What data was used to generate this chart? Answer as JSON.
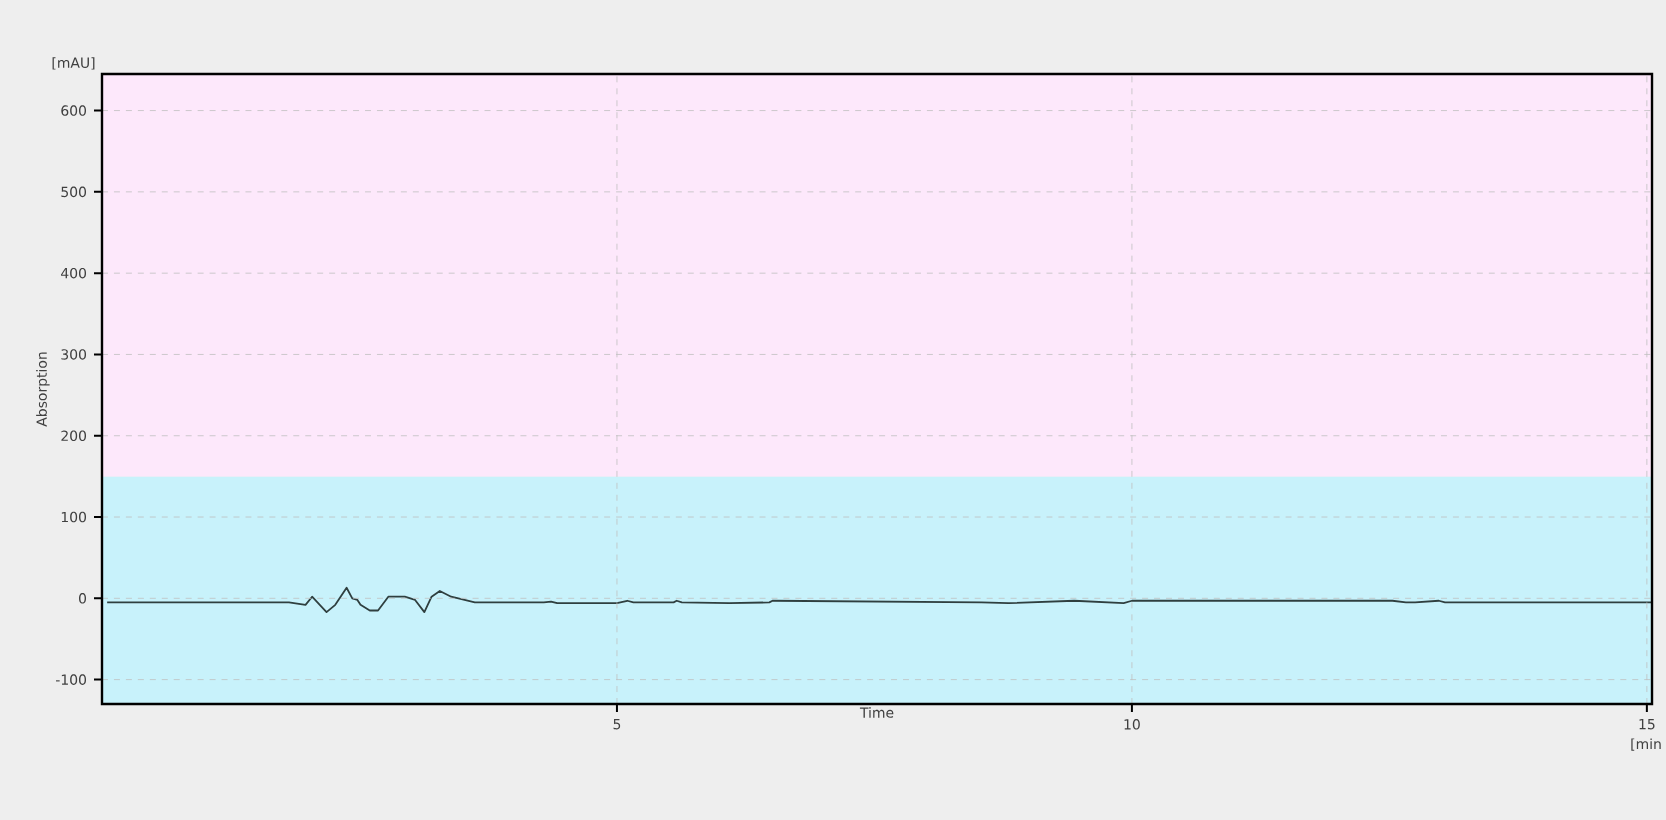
{
  "chart_data": {
    "type": "line",
    "xlabel": "Time",
    "ylabel": "Absorption",
    "annotations": [
      "[mAU]",
      "[min"
    ],
    "x": [
      0.05,
      1.815,
      1.976,
      2.04,
      2.18,
      2.265,
      2.375,
      2.43,
      2.48,
      2.51,
      2.6,
      2.68,
      2.78,
      2.94,
      3.04,
      3.13,
      3.2,
      3.28,
      3.39,
      3.52,
      3.62,
      4.29,
      4.36,
      4.42,
      5.0,
      5.1,
      5.16,
      5.55,
      5.58,
      5.63,
      6.09,
      6.48,
      6.51,
      8.54,
      8.8,
      9.44,
      9.92,
      10.0,
      12.53,
      12.66,
      12.75,
      12.98,
      13.04,
      15.04
    ],
    "series": [
      {
        "color": "#2f3f3f",
        "values": [
          -5,
          -5,
          -8,
          2,
          -17,
          -8,
          13,
          0,
          -2,
          -8,
          -15,
          -15,
          2,
          2,
          -2,
          -17,
          2,
          9,
          2,
          -2,
          -5,
          -5,
          -4,
          -6,
          -6,
          -3,
          -5,
          -5,
          -3,
          -5,
          -6,
          -5,
          -3,
          -5,
          -6,
          -3,
          -6,
          -3,
          -3,
          -5,
          -5,
          -3,
          -5,
          -5
        ]
      }
    ],
    "xlim": [
      0,
      15.05
    ],
    "ylim": [
      -130,
      645
    ],
    "xticks": [
      5,
      10,
      15
    ],
    "yticks": [
      -100,
      0,
      100,
      200,
      300,
      400,
      500,
      600
    ],
    "bands": [
      {
        "axis": "y",
        "from": -130,
        "to": 150,
        "color": "#c8f2fb"
      },
      {
        "axis": "y",
        "from": 150,
        "to": 645,
        "color": "#fde8fb"
      }
    ],
    "grid": true,
    "marker": "none",
    "line_style": "solid"
  }
}
